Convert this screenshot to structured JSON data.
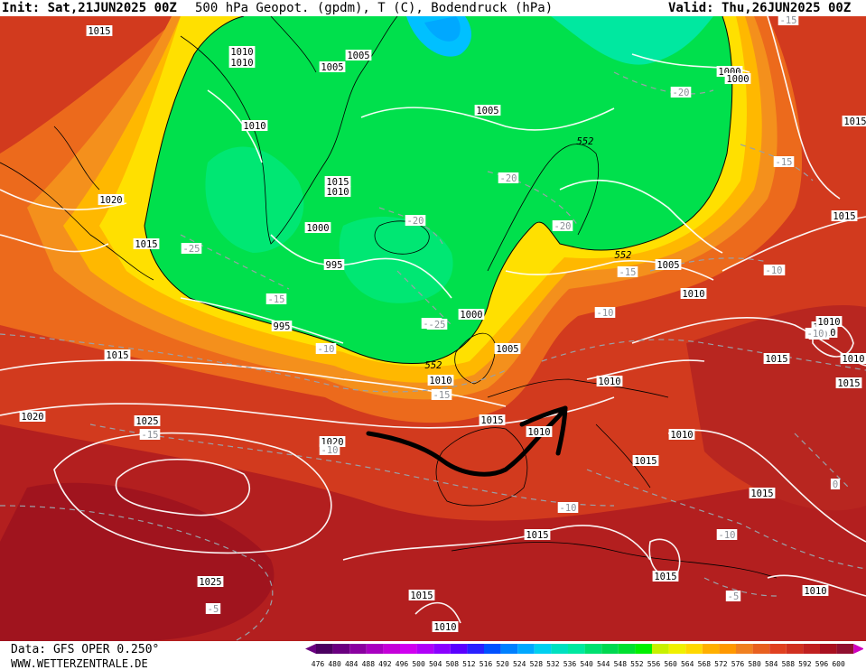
{
  "header": {
    "init": "Init: Sat,21JUN2025 00Z",
    "title": "500 hPa Geopot. (gpdm), T (C), Bodendruck (hPa)",
    "valid": "Valid: Thu,26JUN2025 00Z"
  },
  "footer": {
    "source": "Data: GFS OPER 0.250°",
    "url": "WWW.WETTERZENTRALE.DE"
  },
  "colorbar": {
    "ticks": [
      "476",
      "480",
      "484",
      "488",
      "492",
      "496",
      "500",
      "504",
      "508",
      "512",
      "516",
      "520",
      "524",
      "528",
      "532",
      "536",
      "540",
      "544",
      "548",
      "552",
      "556",
      "560",
      "564",
      "568",
      "572",
      "576",
      "580",
      "584",
      "588",
      "592",
      "596",
      "600"
    ],
    "colors": [
      "#4b0060",
      "#6a0080",
      "#8a00a0",
      "#a800c0",
      "#c400d8",
      "#d000f0",
      "#b000f8",
      "#8a00ff",
      "#5a00ff",
      "#2a20ff",
      "#0050ff",
      "#0080ff",
      "#00a8ff",
      "#00d0f0",
      "#00e0c0",
      "#00e8a0",
      "#00e070",
      "#00d850",
      "#00e030",
      "#00f000",
      "#c8f000",
      "#f0f000",
      "#ffd800",
      "#ffb000",
      "#ff9800",
      "#f08020",
      "#e86020",
      "#e04020",
      "#d03020",
      "#c02020",
      "#a81020",
      "#901030"
    ],
    "arrow_left": "#6a0080",
    "arrow_right": "#d000c0"
  },
  "pressure_labels": [
    "1015",
    "1010",
    "1010",
    "1005",
    "1005",
    "1010",
    "1005",
    "1000",
    "1000",
    "1015",
    "1010",
    "1020",
    "1015",
    "1000",
    "995",
    "995",
    "1000",
    "1005",
    "1010",
    "1015",
    "1015",
    "1020",
    "1025",
    "1020",
    "1015",
    "1010",
    "1005",
    "1010",
    "1015",
    "1010",
    "1015",
    "1015",
    "1010",
    "1015",
    "1010",
    "1015",
    "1015",
    "1010",
    "1025",
    "1015",
    "1010",
    "1015",
    "1010",
    "1010",
    "1010"
  ],
  "temp_labels": [
    "-15",
    "-20",
    "-20",
    "-20",
    "-25",
    "-15",
    "-10",
    "-20",
    "-25",
    "-15",
    "-10",
    "-15",
    "-10",
    "-10",
    "-10",
    "-15",
    "-10",
    "-15",
    "-10",
    "-10",
    "-5",
    "-5",
    "-10",
    "0",
    "-15"
  ],
  "geopot_labels": [
    "552",
    "552",
    "552"
  ],
  "annotation": "hand-drawn black arrow from the Bay of Biscay curving east across Iberia toward the western Mediterranean"
}
